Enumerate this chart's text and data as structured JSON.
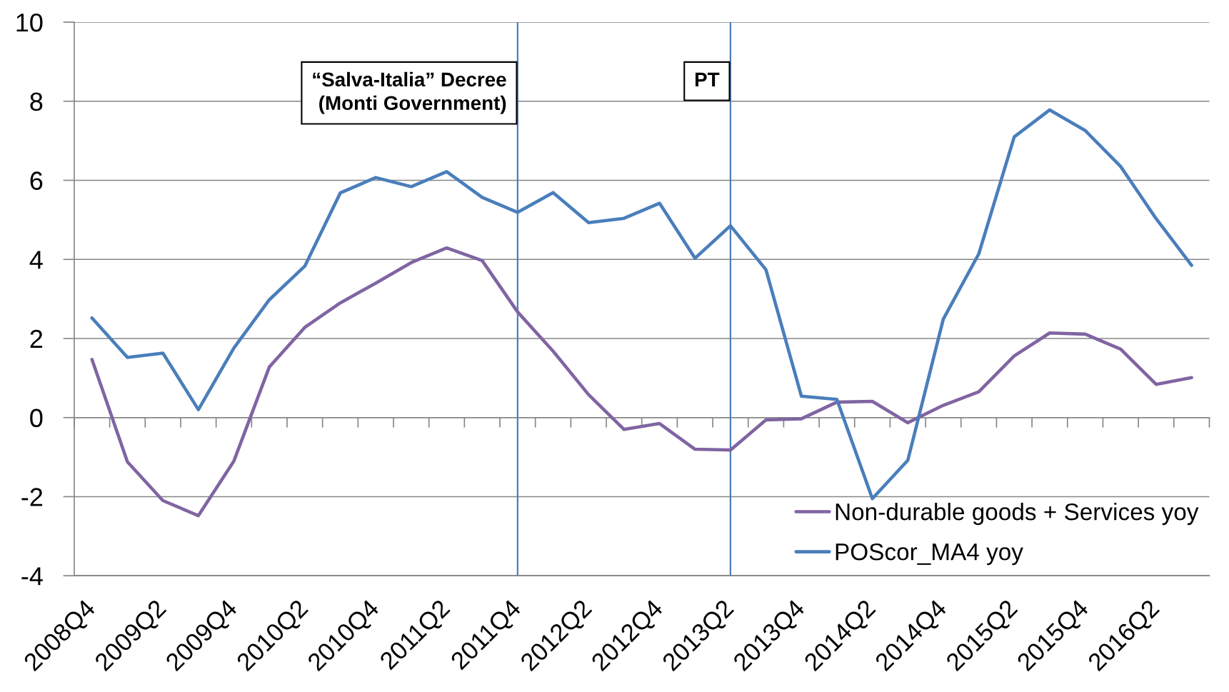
{
  "chart_data": {
    "type": "line",
    "categories": [
      "2008Q4",
      null,
      "2009Q2",
      null,
      "2009Q4",
      null,
      "2010Q2",
      null,
      "2010Q4",
      null,
      "2011Q2",
      null,
      "2011Q4",
      null,
      "2012Q2",
      null,
      "2012Q4",
      null,
      "2013Q2",
      null,
      "2013Q4",
      null,
      "2014Q2",
      null,
      "2014Q4",
      null,
      "2015Q2",
      null,
      "2015Q4",
      null,
      "2016Q2",
      null
    ],
    "series": [
      {
        "name": "Non-durable goods + Services yoy",
        "color": "#8064a2",
        "values": [
          1.47,
          -1.12,
          -2.1,
          -2.48,
          -1.1,
          1.28,
          2.28,
          2.9,
          3.4,
          3.92,
          4.29,
          3.97,
          2.67,
          1.68,
          0.58,
          -0.3,
          -0.15,
          -0.8,
          -0.82,
          -0.06,
          -0.03,
          0.39,
          0.41,
          -0.13,
          0.31,
          0.65,
          1.56,
          2.14,
          2.11,
          1.73,
          0.84,
          1.01
        ]
      },
      {
        "name": "POScor_MA4 yoy",
        "color": "#4a7ebb",
        "values": [
          2.52,
          1.52,
          1.63,
          0.2,
          1.76,
          2.98,
          3.83,
          5.68,
          6.07,
          5.84,
          6.22,
          5.57,
          5.19,
          5.69,
          4.93,
          5.04,
          5.42,
          4.03,
          4.85,
          3.74,
          0.54,
          0.46,
          -2.05,
          -1.08,
          2.49,
          4.14,
          7.1,
          7.78,
          7.26,
          6.35,
          5.03,
          3.85
        ]
      }
    ],
    "ylim": [
      -4,
      10
    ],
    "yticks": [
      -4,
      -2,
      0,
      2,
      4,
      6,
      8,
      10
    ],
    "grid": "y",
    "legend": "bottom right",
    "marker": "none",
    "line_style": "solid",
    "ref_lines": [
      {
        "axis": "x",
        "value": "2011Q4",
        "label": "“Salva-Italia” Decree\n(Monti Government)",
        "color": "#4a7ebb"
      },
      {
        "axis": "x",
        "value": "2013Q2",
        "label": "PT",
        "color": "#4a7ebb"
      }
    ]
  }
}
